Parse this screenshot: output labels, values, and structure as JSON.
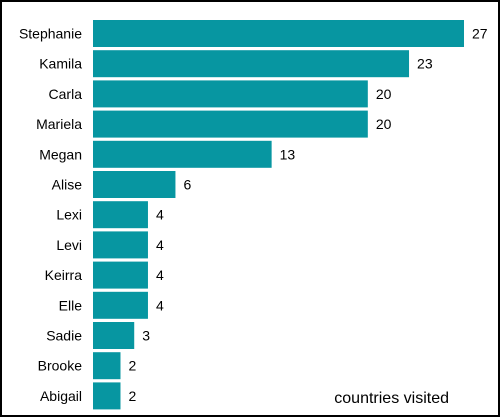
{
  "chart_data": {
    "type": "bar",
    "orientation": "horizontal",
    "categories": [
      "Stephanie",
      "Kamila",
      "Carla",
      "Mariela",
      "Megan",
      "Alise",
      "Lexi",
      "Levi",
      "Keirra",
      "Elle",
      "Sadie",
      "Brooke",
      "Abigail"
    ],
    "values": [
      27,
      23,
      20,
      20,
      13,
      6,
      4,
      4,
      4,
      4,
      3,
      2,
      2
    ],
    "title": "",
    "xlabel": "",
    "ylabel": "",
    "annotation": "countries visited",
    "xlim": [
      0,
      27
    ],
    "grid": false,
    "legend": "none",
    "bar_color": "#0796a1",
    "value_labels": true
  }
}
